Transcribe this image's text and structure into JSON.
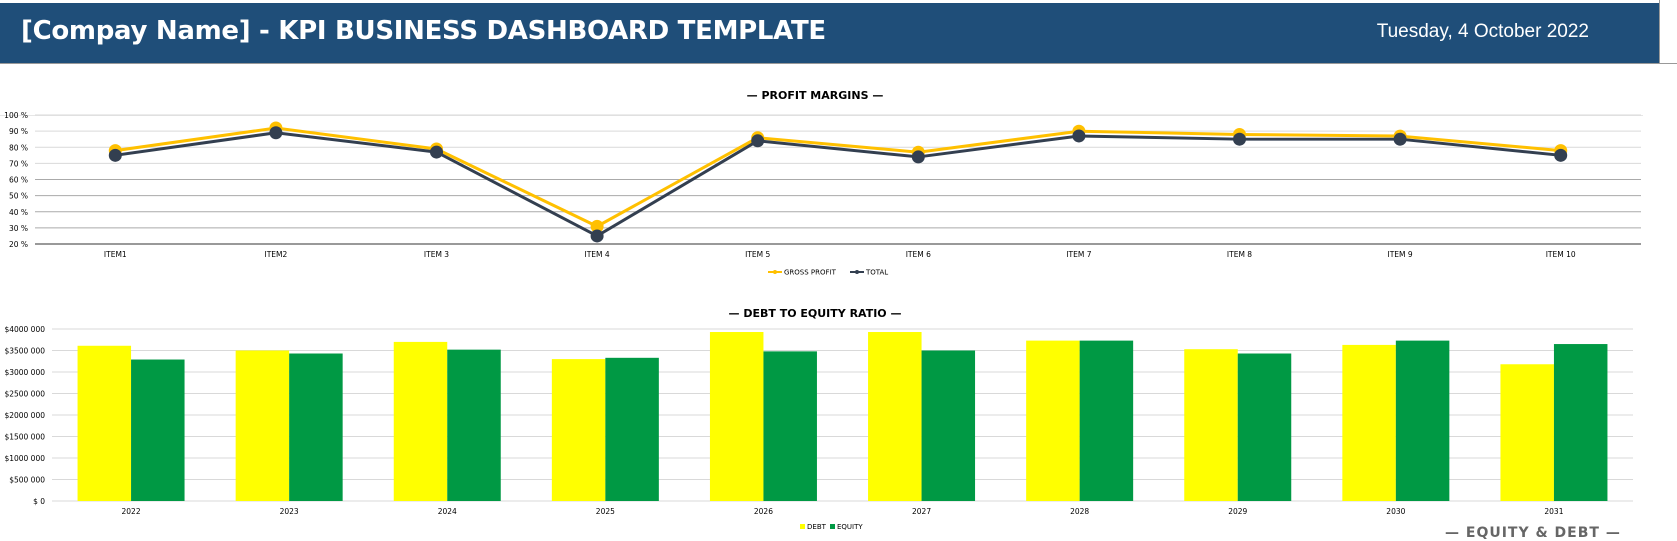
{
  "header": {
    "title": "[Compay Name] - KPI BUSINESS DASHBOARD TEMPLATE",
    "date": "Tuesday, 4 October 2022",
    "background": "#1F4E79"
  },
  "footer_label": "— EQUITY & DEBT —",
  "chart_data": [
    {
      "type": "line",
      "title": "— PROFIT MARGINS —",
      "categories": [
        "ITEM1",
        "ITEM2",
        "ITEM 3",
        "ITEM 4",
        "ITEM 5",
        "ITEM 6",
        "ITEM 7",
        "ITEM 8",
        "ITEM 9",
        "ITEM 10"
      ],
      "series": [
        {
          "name": "GROSS PROFIT",
          "color": "#FFC000",
          "values": [
            77,
            91,
            78,
            30,
            85,
            76,
            89,
            87,
            86,
            77
          ]
        },
        {
          "name": "TOTAL",
          "color": "#333F50",
          "values": [
            75,
            89,
            77,
            25,
            84,
            74,
            87,
            85,
            85,
            75
          ]
        }
      ],
      "ylim": [
        20,
        100
      ],
      "yticks": [
        "20 %",
        "30 %",
        "40 %",
        "50 %",
        "60 %",
        "70 %",
        "80 %",
        "90 %",
        "100 %"
      ],
      "grid": true,
      "legend": "bottom"
    },
    {
      "type": "bar",
      "title": "— DEBT TO EQUITY RATIO —",
      "categories": [
        "2022",
        "2023",
        "2024",
        "2025",
        "2026",
        "2027",
        "2028",
        "2029",
        "2030",
        "2031"
      ],
      "series": [
        {
          "name": "DEBT",
          "color": "#FFFF00",
          "values": [
            3610000,
            3500000,
            3700000,
            3300000,
            3930000,
            3930000,
            3730000,
            3530000,
            3630000,
            3180000
          ]
        },
        {
          "name": "EQUITY",
          "color": "#009944",
          "values": [
            3290000,
            3430000,
            3520000,
            3330000,
            3480000,
            3500000,
            3730000,
            3430000,
            3730000,
            3650000
          ]
        }
      ],
      "ylim": [
        0,
        4000000
      ],
      "yticks": [
        "$ 0",
        "$500 000",
        "$1000 000",
        "$1500 000",
        "$2000 000",
        "$2500 000",
        "$3000 000",
        "$3500 000",
        "$4000 000"
      ],
      "grid": true,
      "legend": "bottom"
    }
  ]
}
